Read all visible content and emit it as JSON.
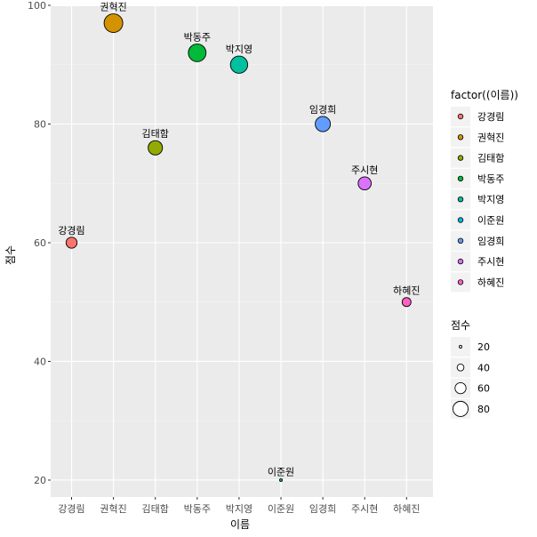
{
  "chart_data": {
    "type": "scatter",
    "title": "",
    "xlabel": "이름",
    "ylabel": "점수",
    "categories": [
      "강경림",
      "권혁진",
      "김태함",
      "박동주",
      "박지영",
      "이준원",
      "임경희",
      "주시현",
      "하혜진"
    ],
    "values": [
      60,
      97,
      76,
      92,
      90,
      20,
      80,
      70,
      50
    ],
    "point_labels": [
      "강경림",
      "권혁진",
      "김태함",
      "박동주",
      "박지영",
      "이준원",
      "임경희",
      "주시현",
      "하혜진"
    ],
    "colors": [
      "#F8766D",
      "#D39200",
      "#93AA00",
      "#00BA38",
      "#00C19F",
      "#00B9E3",
      "#619CFF",
      "#DB72FB",
      "#FF61C3"
    ],
    "ylim": [
      17.15,
      99.85
    ],
    "yticks": [
      20,
      40,
      60,
      80,
      100
    ],
    "grid": true,
    "legend_placement": "right",
    "color_legend": {
      "title": "factor((이름))",
      "entries": [
        "강경림",
        "권혁진",
        "김태함",
        "박동주",
        "박지영",
        "이준원",
        "임경희",
        "주시현",
        "하혜진"
      ]
    },
    "size_legend": {
      "title": "점수",
      "entries": [
        20,
        40,
        60,
        80
      ]
    }
  }
}
